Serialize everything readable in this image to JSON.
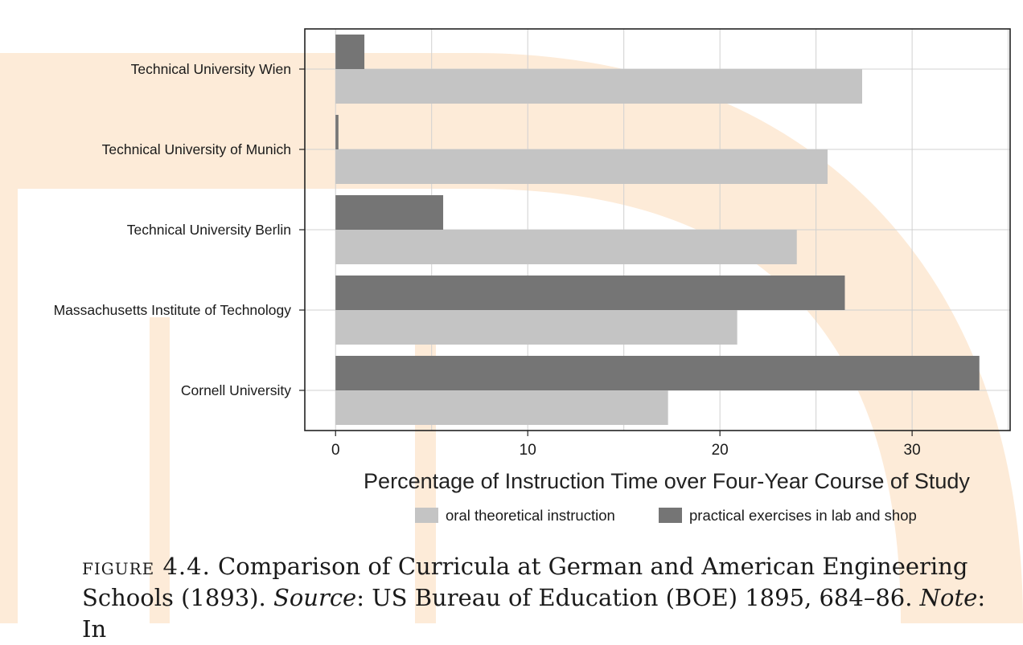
{
  "chart_data": {
    "type": "bar",
    "orientation": "horizontal",
    "categories": [
      "Technical University Wien",
      "Technical University of Munich",
      "Technical University Berlin",
      "Massachusetts Institute of Technology",
      "Cornell University"
    ],
    "series": [
      {
        "name": "oral theoretical instruction",
        "color": "#c4c4c4",
        "values": [
          27.4,
          25.6,
          24.0,
          20.9,
          17.3
        ]
      },
      {
        "name": "practical exercises in lab and shop",
        "color": "#757575",
        "values": [
          1.5,
          0.15,
          5.6,
          26.5,
          33.5
        ]
      }
    ],
    "xlabel": "Percentage of Instruction Time over Four-Year Course of Study",
    "xticks": [
      0,
      10,
      20,
      30
    ],
    "xlim": [
      -1.6,
      35.1
    ],
    "grid": true,
    "legend_position": "bottom"
  },
  "caption": {
    "label": "figure 4.4.",
    "title": " Comparison of Curricula at German and American Engineering Schools (1893). ",
    "source_label": "Source",
    "source_text": ": US Bureau of Education (BOE) 1895, 684–86. ",
    "note_label": "Note",
    "note_text": ": In"
  },
  "watermark_color": "#fdebd8"
}
